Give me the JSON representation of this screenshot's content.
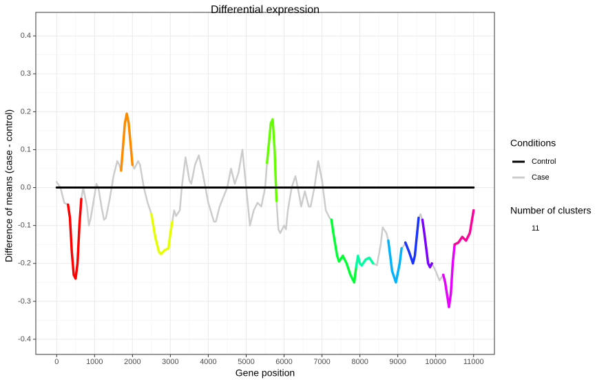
{
  "chart_data": {
    "type": "line",
    "title": "Differential expression",
    "x_label": "Gene position",
    "y_label": "Difference of means (case - control)",
    "xlim": [
      -550,
      11550
    ],
    "ylim": [
      -0.44,
      0.462
    ],
    "xticks": [
      0,
      1000,
      2000,
      3000,
      4000,
      5000,
      6000,
      7000,
      8000,
      9000,
      10000,
      11000
    ],
    "yticks": [
      -0.4,
      -0.3,
      -0.2,
      -0.1,
      {
        "value": 0,
        "label": "0.0"
      },
      0.1,
      0.2,
      0.3,
      0.4
    ],
    "grid": true,
    "legend_title": "Conditions",
    "series": [
      {
        "name": "Control",
        "color": "#000000",
        "x": [
          0,
          11000
        ],
        "values": [
          0,
          0
        ]
      },
      {
        "name": "Case",
        "color": "#cccccc",
        "x": [
          0,
          100,
          200,
          300,
          350,
          400,
          450,
          500,
          550,
          600,
          650,
          700,
          800,
          850,
          900,
          1000,
          1050,
          1100,
          1200,
          1250,
          1300,
          1400,
          1500,
          1600,
          1650,
          1700,
          1800,
          1850,
          1900,
          2000,
          2050,
          2150,
          2200,
          2300,
          2400,
          2500,
          2600,
          2700,
          2750,
          2850,
          2950,
          3000,
          3050,
          3100,
          3150,
          3250,
          3300,
          3400,
          3500,
          3550,
          3650,
          3750,
          3850,
          4000,
          4150,
          4200,
          4300,
          4400,
          4500,
          4600,
          4700,
          4800,
          4900,
          5000,
          5100,
          5200,
          5300,
          5400,
          5500,
          5550,
          5650,
          5700,
          5750,
          5800,
          5850,
          5900,
          6000,
          6050,
          6100,
          6200,
          6300,
          6400,
          6450,
          6550,
          6650,
          6700,
          6800,
          6900,
          7000,
          7100,
          7200,
          7250,
          7300,
          7400,
          7450,
          7550,
          7650,
          7750,
          7850,
          7900,
          7950,
          8000,
          8050,
          8150,
          8250,
          8350,
          8450,
          8550,
          8600,
          8700,
          8750,
          8850,
          8950,
          9050,
          9100,
          9150,
          9200,
          9300,
          9400,
          9450,
          9550,
          9600,
          9650,
          9700,
          9800,
          9850,
          9900,
          10000,
          10100,
          10200,
          10250,
          10350,
          10400,
          10450,
          10500,
          10600,
          10700,
          10800,
          10900,
          11000
        ],
        "values": [
          0.015,
          0.0,
          -0.04,
          -0.045,
          -0.08,
          -0.17,
          -0.23,
          -0.24,
          -0.2,
          -0.1,
          -0.03,
          0.0,
          -0.05,
          -0.1,
          -0.08,
          -0.02,
          0.01,
          0.0,
          -0.06,
          -0.085,
          -0.08,
          -0.03,
          0.03,
          0.07,
          0.06,
          0.045,
          0.17,
          0.195,
          0.17,
          0.06,
          0.05,
          0.07,
          0.06,
          0.0,
          -0.04,
          -0.07,
          -0.13,
          -0.17,
          -0.175,
          -0.165,
          -0.16,
          -0.12,
          -0.09,
          -0.06,
          -0.075,
          -0.06,
          0.0,
          0.08,
          0.02,
          0.01,
          0.06,
          0.085,
          0.04,
          -0.04,
          -0.09,
          -0.09,
          -0.05,
          -0.025,
          0.0,
          0.05,
          0.01,
          0.04,
          0.1,
          0.0,
          -0.1,
          -0.06,
          -0.04,
          -0.05,
          0.0,
          0.065,
          0.17,
          0.18,
          0.1,
          -0.035,
          -0.11,
          -0.12,
          -0.1,
          -0.11,
          -0.06,
          0.0,
          0.03,
          -0.02,
          -0.05,
          -0.01,
          -0.05,
          -0.05,
          0.0,
          0.07,
          0.02,
          -0.06,
          -0.08,
          -0.085,
          -0.12,
          -0.18,
          -0.195,
          -0.18,
          -0.2,
          -0.23,
          -0.25,
          -0.21,
          -0.18,
          -0.2,
          -0.205,
          -0.19,
          -0.185,
          -0.2,
          -0.205,
          -0.15,
          -0.105,
          -0.12,
          -0.14,
          -0.22,
          -0.25,
          -0.2,
          -0.16,
          -0.155,
          -0.145,
          -0.17,
          -0.2,
          -0.18,
          -0.08,
          -0.07,
          -0.085,
          -0.12,
          -0.2,
          -0.21,
          -0.2,
          -0.22,
          -0.245,
          -0.23,
          -0.25,
          -0.315,
          -0.28,
          -0.2,
          -0.15,
          -0.145,
          -0.13,
          -0.14,
          -0.12,
          -0.06
        ]
      }
    ],
    "clusters": [
      {
        "color": "#ff0000",
        "start": 300,
        "end": 650
      },
      {
        "color": "#ff8c00",
        "start": 1700,
        "end": 2000
      },
      {
        "color": "#e6ff00",
        "start": 2500,
        "end": 3050
      },
      {
        "color": "#66ff00",
        "start": 5550,
        "end": 5800
      },
      {
        "color": "#00ff33",
        "start": 7250,
        "end": 7900
      },
      {
        "color": "#00ffa0",
        "start": 7900,
        "end": 8350
      },
      {
        "color": "#00b3ff",
        "start": 8750,
        "end": 9100
      },
      {
        "color": "#1a33ff",
        "start": 9200,
        "end": 9550
      },
      {
        "color": "#7a00ff",
        "start": 9650,
        "end": 9900
      },
      {
        "color": "#e600ff",
        "start": 10200,
        "end": 10500
      },
      {
        "color": "#ff0099",
        "start": 10500,
        "end": 11000
      }
    ],
    "cluster_legend": {
      "title": "Number of clusters",
      "value": 11
    }
  }
}
